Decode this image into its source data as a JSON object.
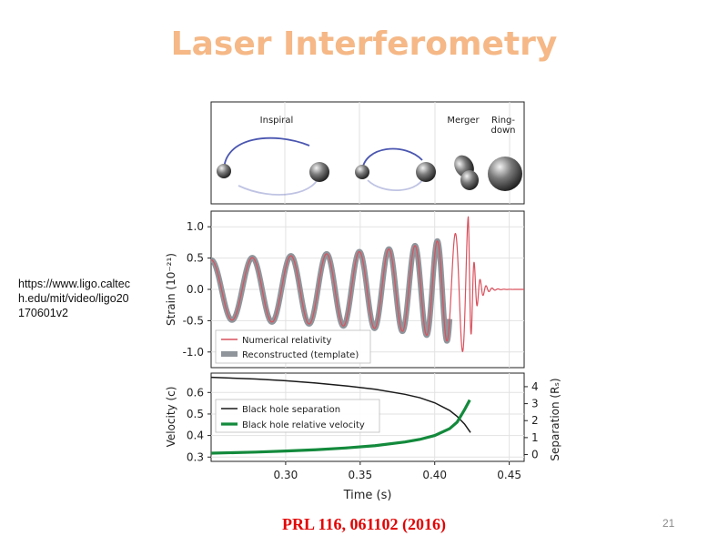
{
  "slide": {
    "title": "Laser Interferometry",
    "source_url": "https://www.ligo.caltech.edu/mit/video/ligo20170601v2",
    "reference": "PRL 116, 061102 (2016)",
    "page_number": "21"
  },
  "colors": {
    "title": "#f5b886",
    "reference": "#e30000",
    "numerical_relativity": "#d9515d",
    "template": "#8f959b",
    "separation": "#1a1a1a",
    "velocity": "#138a3c",
    "orbit": "#4a56b0"
  },
  "chart_data": [
    {
      "type": "illustration",
      "phase_labels": {
        "inspiral": "Inspiral",
        "merger": "Merger",
        "ringdown": "Ring-\ndown"
      }
    },
    {
      "type": "line",
      "ylabel": "Strain (10⁻²¹)",
      "xlim": [
        0.25,
        0.46
      ],
      "ylim": [
        -1.25,
        1.25
      ],
      "yticks": [
        1.0,
        0.5,
        0.0,
        -0.5,
        -1.0
      ],
      "ytick_labels": [
        "1.0",
        "0.5",
        "0.0",
        "-0.5",
        "-1.0"
      ],
      "grid": true,
      "legend_position": "bottom-left",
      "series": [
        {
          "name": "Numerical relativity",
          "style": "thin-line",
          "color": "#d9515d"
        },
        {
          "name": "Reconstructed (template)",
          "style": "thick-band",
          "color": "#8f959b"
        }
      ],
      "waveform": {
        "amplitude_start": 0.47,
        "amplitude_peak": 1.16,
        "frequency_start_hz": 35,
        "frequency_peak_hz": 150,
        "merger_time": 0.4225,
        "ringdown_frequency_hz": 250,
        "ringdown_tau": 0.004,
        "template_end_time": 0.41
      }
    },
    {
      "type": "line",
      "xlabel": "Time (s)",
      "ylabel": "Velocity (c)",
      "ylabel_right": "Separation (Rₛ)",
      "xlim": [
        0.25,
        0.46
      ],
      "ylim": [
        0.28,
        0.69
      ],
      "ylim_right": [
        -0.4,
        4.8
      ],
      "xticks": [
        0.3,
        0.35,
        0.4,
        0.45
      ],
      "xtick_labels": [
        "0.30",
        "0.35",
        "0.40",
        "0.45"
      ],
      "yticks": [
        0.6,
        0.5,
        0.4,
        0.3
      ],
      "ytick_labels": [
        "0.6",
        "0.5",
        "0.4",
        "0.3"
      ],
      "yticks_right": [
        4,
        3,
        2,
        1,
        0
      ],
      "ytick_labels_right": [
        "4",
        "3",
        "2",
        "1",
        "0"
      ],
      "grid": true,
      "legend_position": "top-left",
      "series": [
        {
          "name": "Black hole separation",
          "axis": "right",
          "color": "#1a1a1a",
          "x": [
            0.25,
            0.28,
            0.3,
            0.32,
            0.34,
            0.36,
            0.38,
            0.39,
            0.4,
            0.41,
            0.415,
            0.42,
            0.424
          ],
          "y": [
            4.55,
            4.45,
            4.35,
            4.22,
            4.05,
            3.85,
            3.55,
            3.35,
            3.05,
            2.6,
            2.25,
            1.8,
            1.3
          ]
        },
        {
          "name": "Black hole relative velocity",
          "axis": "left",
          "color": "#138a3c",
          "x": [
            0.25,
            0.28,
            0.3,
            0.32,
            0.34,
            0.36,
            0.38,
            0.39,
            0.4,
            0.41,
            0.415,
            0.42,
            0.4235
          ],
          "y": [
            0.318,
            0.323,
            0.328,
            0.334,
            0.342,
            0.353,
            0.37,
            0.382,
            0.4,
            0.432,
            0.462,
            0.52,
            0.565
          ]
        }
      ]
    }
  ]
}
